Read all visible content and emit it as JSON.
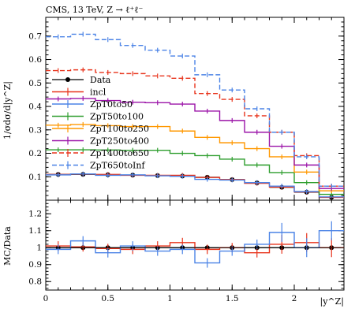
{
  "chart_data": [
    {
      "type": "line",
      "title": "CMS, 13 TeV, Z → ℓ⁺ℓ⁻",
      "ylabel": "1/σdσ/d|y^Z|",
      "xlabel": "",
      "ylim": [
        0,
        0.78
      ],
      "xlim": [
        0,
        2.4
      ],
      "yticks": [
        "0.1",
        "0.2",
        "0.3",
        "0.4",
        "0.5",
        "0.6",
        "0.7"
      ],
      "yticks_val": [
        0.1,
        0.2,
        0.3,
        0.4,
        0.5,
        0.6,
        0.7
      ],
      "legend_position": "left",
      "bin_edges": [
        0,
        0.2,
        0.4,
        0.6,
        0.8,
        1.0,
        1.2,
        1.4,
        1.6,
        1.8,
        2.0,
        2.2,
        2.4
      ],
      "series": [
        {
          "name": "Data",
          "color": "#000000",
          "style": "points",
          "values": [
            0.11,
            0.11,
            0.109,
            0.107,
            0.105,
            0.103,
            0.098,
            0.088,
            0.074,
            0.055,
            0.034,
            0.012
          ]
        },
        {
          "name": "incl",
          "color": "#e8341c",
          "style": "solid",
          "values": [
            0.11,
            0.111,
            0.11,
            0.106,
            0.106,
            0.106,
            0.097,
            0.088,
            0.072,
            0.056,
            0.035,
            0.012
          ]
        },
        {
          "name": "ZpT0to50",
          "color": "#4b83e6",
          "style": "solid",
          "values": [
            0.108,
            0.112,
            0.106,
            0.108,
            0.104,
            0.102,
            0.089,
            0.086,
            0.075,
            0.06,
            0.037,
            0.014
          ]
        },
        {
          "name": "ZpT50to100",
          "color": "#2e9e2e",
          "style": "solid",
          "values": [
            0.215,
            0.215,
            0.214,
            0.213,
            0.213,
            0.2,
            0.19,
            0.175,
            0.15,
            0.118,
            0.075,
            0.025
          ]
        },
        {
          "name": "ZpT100to250",
          "color": "#ff9800",
          "style": "solid",
          "values": [
            0.32,
            0.323,
            0.318,
            0.314,
            0.314,
            0.295,
            0.268,
            0.245,
            0.22,
            0.185,
            0.12,
            0.04
          ]
        },
        {
          "name": "ZpT250to400",
          "color": "#9b14a8",
          "style": "solid",
          "values": [
            0.432,
            0.434,
            0.425,
            0.418,
            0.416,
            0.41,
            0.38,
            0.34,
            0.29,
            0.23,
            0.15,
            0.05
          ]
        },
        {
          "name": "ZpT400to650",
          "color": "#e8341c",
          "style": "dashed",
          "values": [
            0.553,
            0.556,
            0.545,
            0.54,
            0.53,
            0.52,
            0.455,
            0.43,
            0.36,
            0.29,
            0.19,
            0.06
          ]
        },
        {
          "name": "ZpT650toInf",
          "color": "#4b83e6",
          "style": "dashed",
          "values": [
            0.697,
            0.708,
            0.685,
            0.66,
            0.64,
            0.615,
            0.535,
            0.47,
            0.39,
            0.29,
            0.185,
            0.06
          ]
        }
      ]
    },
    {
      "type": "line",
      "ylabel": "MC/Data",
      "xlabel": "|y^Z|",
      "ylim": [
        0.75,
        1.28
      ],
      "xlim": [
        0,
        2.4
      ],
      "xticks": [
        "0",
        "0.5",
        "1",
        "1.5",
        "2"
      ],
      "xticks_val": [
        0,
        0.5,
        1,
        1.5,
        2
      ],
      "yticks": [
        "0.8",
        "0.9",
        "1",
        "1.1",
        "1.2"
      ],
      "yticks_val": [
        0.8,
        0.9,
        1.0,
        1.1,
        1.2
      ],
      "bin_edges": [
        0,
        0.2,
        0.4,
        0.6,
        0.8,
        1.0,
        1.2,
        1.4,
        1.6,
        1.8,
        2.0,
        2.2,
        2.4
      ],
      "series": [
        {
          "name": "Data",
          "color": "#000000",
          "style": "points",
          "values": [
            1,
            1,
            1,
            1,
            1,
            1,
            1,
            1,
            1,
            1,
            1,
            1
          ]
        },
        {
          "name": "incl",
          "color": "#e8341c",
          "style": "solid",
          "values": [
            1.01,
            1.005,
            0.995,
            0.99,
            1.01,
            1.03,
            0.99,
            1.0,
            0.97,
            1.02,
            1.03,
            1.0
          ]
        },
        {
          "name": "ZpT0to50",
          "color": "#4b83e6",
          "style": "solid",
          "values": [
            0.99,
            1.04,
            0.97,
            1.01,
            0.98,
            0.99,
            0.91,
            0.98,
            1.02,
            1.09,
            1.0,
            1.1
          ]
        }
      ]
    }
  ]
}
